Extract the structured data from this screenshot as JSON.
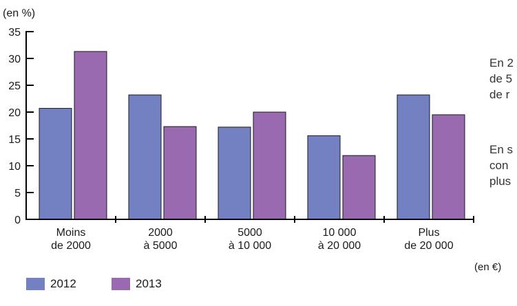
{
  "chart_data": {
    "type": "bar",
    "ylabel": "(en %)",
    "xlabel": "(en €)",
    "ylim": [
      0,
      35
    ],
    "yticks": [
      0,
      5,
      10,
      15,
      20,
      25,
      30,
      35
    ],
    "categories": [
      [
        "Moins",
        "de 2000"
      ],
      [
        "2000",
        "à 5000"
      ],
      [
        "5000",
        "à 10 000"
      ],
      [
        "10 000",
        "à 20 000"
      ],
      [
        "Plus",
        "de 20 000"
      ]
    ],
    "series": [
      {
        "name": "2012",
        "color": "#7381c3",
        "values": [
          20.7,
          23.2,
          17.2,
          15.6,
          23.2
        ]
      },
      {
        "name": "2013",
        "color": "#9a6ab0",
        "values": [
          31.3,
          17.3,
          20.0,
          11.9,
          19.5
        ]
      }
    ],
    "grid": false,
    "legend_position": "bottom-left"
  },
  "side_text": {
    "para1": [
      "En 2",
      "de 5",
      "de r"
    ],
    "para2": [
      "En s",
      "con",
      "plus"
    ]
  }
}
